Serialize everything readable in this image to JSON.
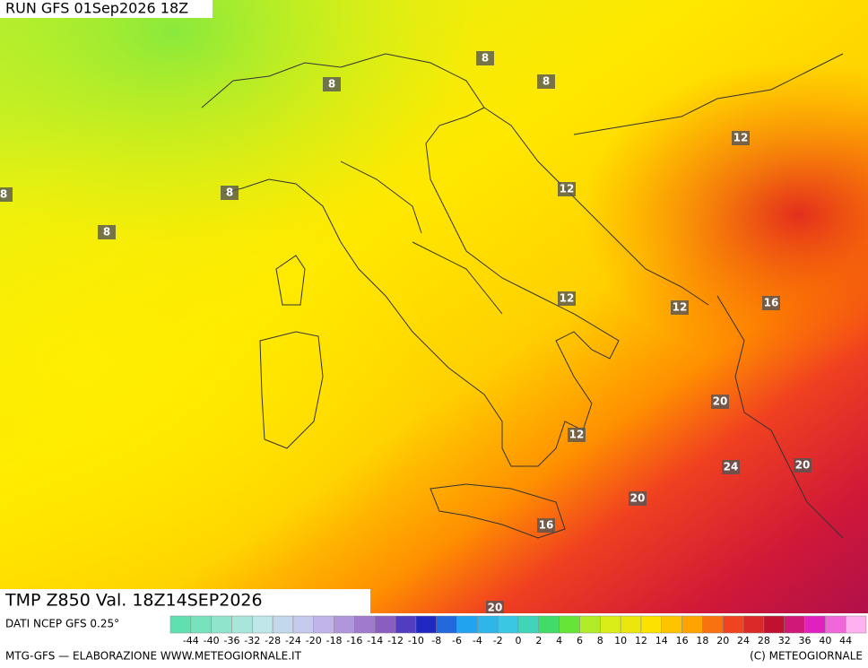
{
  "header": {
    "run": "RUN GFS 01Sep2026 18Z"
  },
  "map": {
    "title": "TMP Z850 Val. 18Z14SEP2026",
    "source": "DATI NCEP GFS 0.25°",
    "contour_labels": [
      8,
      8,
      8,
      8,
      8,
      8,
      12,
      12,
      12,
      12,
      12,
      16,
      16,
      20,
      20,
      20,
      20,
      24
    ]
  },
  "legend": {
    "labels": [
      "-44",
      "-40",
      "-36",
      "-32",
      "-28",
      "-24",
      "-20",
      "-18",
      "-16",
      "-14",
      "-12",
      "-10",
      "-8",
      "-6",
      "-4",
      "-2",
      "0",
      "2",
      "4",
      "6",
      "8",
      "10",
      "12",
      "14",
      "16",
      "18",
      "20",
      "24",
      "28",
      "32",
      "36",
      "40",
      "44"
    ]
  },
  "footer": {
    "left": "MTG-GFS — ELABORAZIONE WWW.METEOGIORNALE.IT",
    "right": "(C) METEOGIORNALE"
  }
}
